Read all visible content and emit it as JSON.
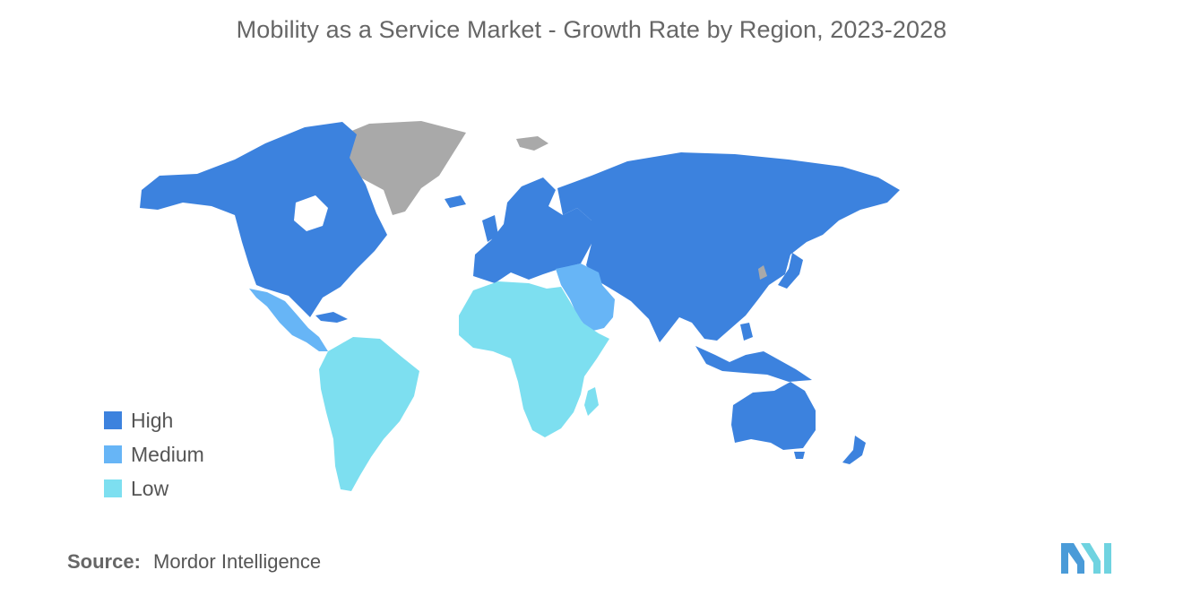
{
  "title": "Mobility as a Service Market - Growth Rate by Region, 2023-2028",
  "colors": {
    "high": "#3c82de",
    "medium": "#67b5f6",
    "low": "#7ddff0",
    "no_data": "#a9a9a9",
    "logo_left": "#4a9bd8",
    "logo_right": "#6fd3e0"
  },
  "legend": [
    {
      "label": "High",
      "color": "#3c82de"
    },
    {
      "label": "Medium",
      "color": "#67b5f6"
    },
    {
      "label": "Low",
      "color": "#7ddff0"
    }
  ],
  "regions": [
    {
      "name": "North America",
      "rating": "High"
    },
    {
      "name": "Europe",
      "rating": "High"
    },
    {
      "name": "Asia-Pacific",
      "rating": "High"
    },
    {
      "name": "Middle East",
      "rating": "Medium"
    },
    {
      "name": "Mexico and Central America",
      "rating": "Medium"
    },
    {
      "name": "South America",
      "rating": "Low"
    },
    {
      "name": "Africa",
      "rating": "Low"
    },
    {
      "name": "Greenland",
      "rating": "No data"
    }
  ],
  "source": {
    "label": "Source:",
    "value": "Mordor Intelligence"
  },
  "logo_icon": "mordor-intelligence-logo-icon"
}
